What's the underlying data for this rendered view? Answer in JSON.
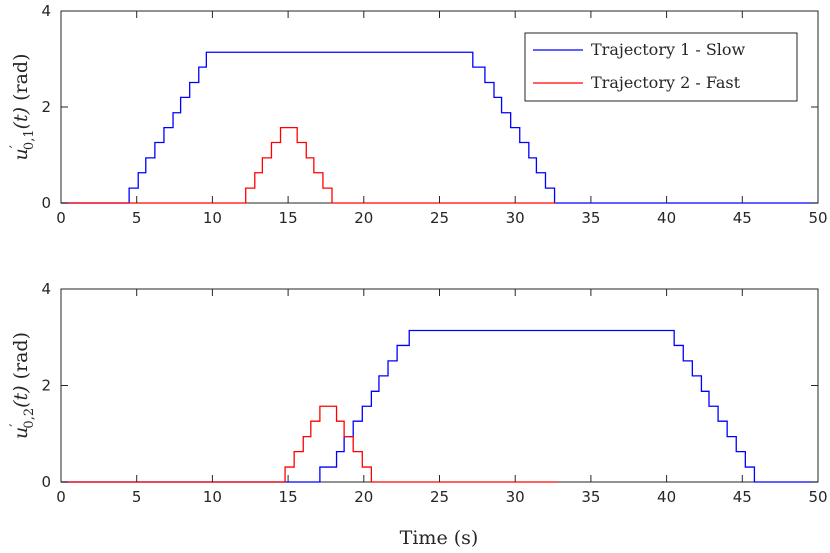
{
  "chart_data": [
    {
      "type": "line",
      "ylabel_math": {
        "base": "u",
        "prime": "′",
        "sub": "0,1",
        "arg": "(t)",
        "unit": "(rad)"
      },
      "xlabel": "",
      "xlim": [
        0,
        50
      ],
      "ylim": [
        0,
        4
      ],
      "xticks": [
        0,
        5,
        10,
        15,
        20,
        25,
        30,
        35,
        40,
        45,
        50
      ],
      "yticks": [
        0,
        2,
        4
      ],
      "legend": {
        "placement": "top-right"
      },
      "series": [
        {
          "name": "Trajectory 1 - Slow",
          "color": "#0000ff",
          "interpolation": "step",
          "x": [
            0,
            4.5,
            5.1,
            5.6,
            6.2,
            6.8,
            7.4,
            7.9,
            8.5,
            9.1,
            9.6,
            10.5,
            27.2,
            28.0,
            28.6,
            29.1,
            29.7,
            30.3,
            30.9,
            31.4,
            32.0,
            32.6,
            33.2,
            50
          ],
          "y": [
            0,
            0.31,
            0.63,
            0.94,
            1.26,
            1.57,
            1.88,
            2.2,
            2.51,
            2.83,
            3.14,
            3.14,
            2.83,
            2.51,
            2.2,
            1.88,
            1.57,
            1.26,
            0.94,
            0.63,
            0.31,
            0,
            0,
            0
          ]
        },
        {
          "name": "Trajectory 2 - Fast",
          "color": "#ff0000",
          "interpolation": "step",
          "x": [
            0,
            12.2,
            12.8,
            13.3,
            13.9,
            14.5,
            15.6,
            16.2,
            16.7,
            17.3,
            17.9,
            32.7
          ],
          "y": [
            0,
            0.31,
            0.63,
            0.94,
            1.26,
            1.57,
            1.26,
            0.94,
            0.63,
            0.31,
            0,
            0
          ]
        }
      ]
    },
    {
      "type": "line",
      "ylabel_math": {
        "base": "u",
        "prime": "′",
        "sub": "0,2",
        "arg": "(t)",
        "unit": "(rad)"
      },
      "xlabel": "Time (s)",
      "xlim": [
        0,
        50
      ],
      "ylim": [
        0,
        4
      ],
      "xticks": [
        0,
        5,
        10,
        15,
        20,
        25,
        30,
        35,
        40,
        45,
        50
      ],
      "yticks": [
        0,
        2,
        4
      ],
      "series": [
        {
          "name": "Trajectory 1 - Slow",
          "color": "#0000ff",
          "interpolation": "step",
          "x": [
            0,
            17.1,
            18.2,
            18.7,
            19.3,
            19.9,
            20.5,
            21.0,
            21.6,
            22.2,
            23.0,
            39.6,
            40.5,
            41.1,
            41.7,
            42.3,
            42.8,
            43.4,
            44.0,
            44.6,
            45.2,
            45.8,
            50
          ],
          "y": [
            0,
            0.31,
            0.63,
            0.94,
            1.26,
            1.57,
            1.88,
            2.2,
            2.51,
            2.83,
            3.14,
            3.14,
            2.83,
            2.51,
            2.2,
            1.88,
            1.57,
            1.26,
            0.94,
            0.63,
            0.31,
            0,
            0
          ]
        },
        {
          "name": "Trajectory 2 - Fast",
          "color": "#ff0000",
          "interpolation": "step",
          "x": [
            0,
            14.8,
            15.4,
            16.0,
            16.5,
            17.1,
            18.2,
            18.7,
            19.3,
            19.9,
            20.5,
            32.8
          ],
          "y": [
            0,
            0.31,
            0.63,
            0.94,
            1.26,
            1.57,
            1.26,
            0.94,
            0.63,
            0.31,
            0,
            0
          ]
        }
      ]
    }
  ]
}
